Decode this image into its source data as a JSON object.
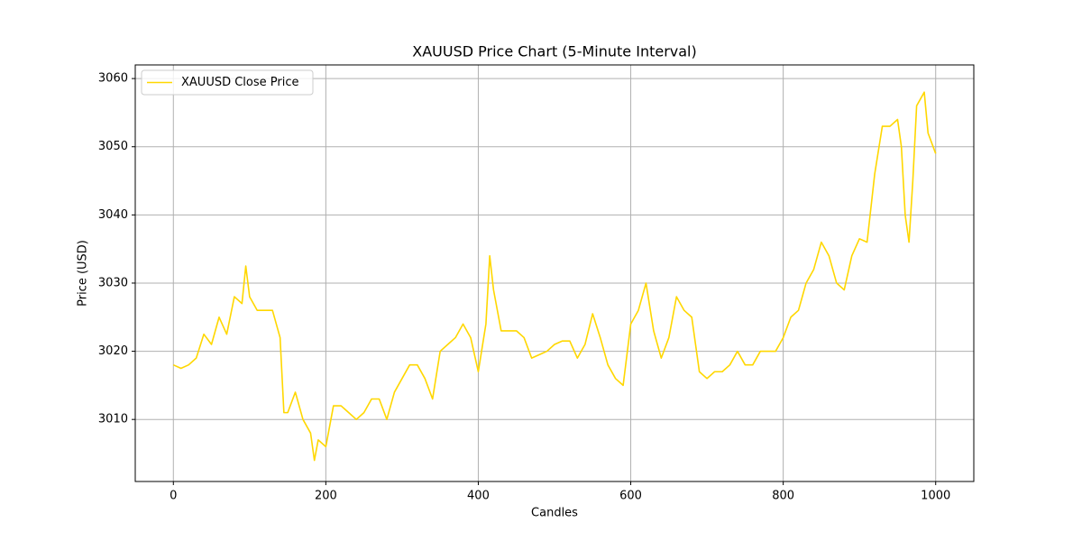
{
  "chart_data": {
    "type": "line",
    "title": "XAUUSD Price Chart (5-Minute Interval)",
    "xlabel": "Candles",
    "ylabel": "Price (USD)",
    "x": [
      0,
      10,
      20,
      30,
      40,
      50,
      60,
      70,
      80,
      90,
      95,
      100,
      110,
      120,
      130,
      140,
      145,
      150,
      160,
      170,
      180,
      185,
      190,
      200,
      210,
      220,
      230,
      240,
      250,
      260,
      270,
      280,
      290,
      300,
      310,
      320,
      330,
      340,
      350,
      360,
      370,
      380,
      390,
      400,
      410,
      415,
      420,
      430,
      440,
      450,
      460,
      470,
      480,
      490,
      500,
      510,
      520,
      530,
      540,
      550,
      560,
      570,
      580,
      590,
      600,
      610,
      620,
      630,
      640,
      650,
      660,
      670,
      680,
      690,
      700,
      710,
      720,
      730,
      740,
      750,
      760,
      770,
      780,
      790,
      800,
      810,
      820,
      830,
      840,
      850,
      860,
      870,
      880,
      890,
      900,
      910,
      920,
      930,
      940,
      950,
      955,
      960,
      965,
      970,
      975,
      980,
      985,
      990,
      1000
    ],
    "series": [
      {
        "name": "XAUUSD Close Price",
        "color": "#ffd700",
        "values": [
          3018,
          3017.5,
          3018,
          3019,
          3022.5,
          3021,
          3025,
          3022.5,
          3028,
          3027,
          3032.5,
          3028,
          3026,
          3026,
          3026,
          3022,
          3011,
          3011,
          3014,
          3010,
          3008,
          3004,
          3007,
          3006,
          3012,
          3012,
          3011,
          3010,
          3011,
          3013,
          3013,
          3010,
          3014,
          3016,
          3018,
          3018,
          3016,
          3013,
          3020,
          3021,
          3022,
          3024,
          3022,
          3017,
          3024,
          3034,
          3029,
          3023,
          3023,
          3023,
          3022,
          3019,
          3019.5,
          3020,
          3021,
          3021.5,
          3021.5,
          3019,
          3021,
          3025.5,
          3022,
          3018,
          3016,
          3015,
          3024,
          3026,
          3030,
          3023,
          3019,
          3022,
          3028,
          3026,
          3025,
          3017,
          3016,
          3017,
          3017,
          3018,
          3020,
          3018,
          3018,
          3020,
          3020,
          3020,
          3022,
          3025,
          3026,
          3030,
          3032,
          3036,
          3034,
          3030,
          3029,
          3034,
          3036.5,
          3036,
          3046,
          3053,
          3053,
          3054,
          3050,
          3040,
          3036,
          3045,
          3056,
          3057,
          3058,
          3052,
          3049
        ]
      }
    ],
    "xlim": [
      -50,
      1050
    ],
    "ylim": [
      3000.9,
      3062
    ],
    "xticks": [
      0,
      200,
      400,
      600,
      800,
      1000
    ],
    "yticks": [
      3010,
      3020,
      3030,
      3040,
      3050,
      3060
    ],
    "grid": true,
    "legend": "upper left"
  }
}
